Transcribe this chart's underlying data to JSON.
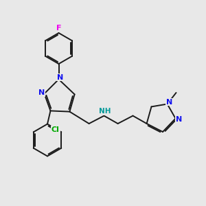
{
  "bg_color": "#e8e8e8",
  "bond_color": "#1a1a1a",
  "N_color": "#1010ee",
  "F_color": "#ee00ee",
  "Cl_color": "#00aa00",
  "NH_color": "#009999",
  "bond_lw": 1.4,
  "dbl_off": 0.07,
  "figsize": [
    3.0,
    3.0
  ],
  "dpi": 100,
  "xlim": [
    0,
    10
  ],
  "ylim": [
    0,
    10
  ]
}
